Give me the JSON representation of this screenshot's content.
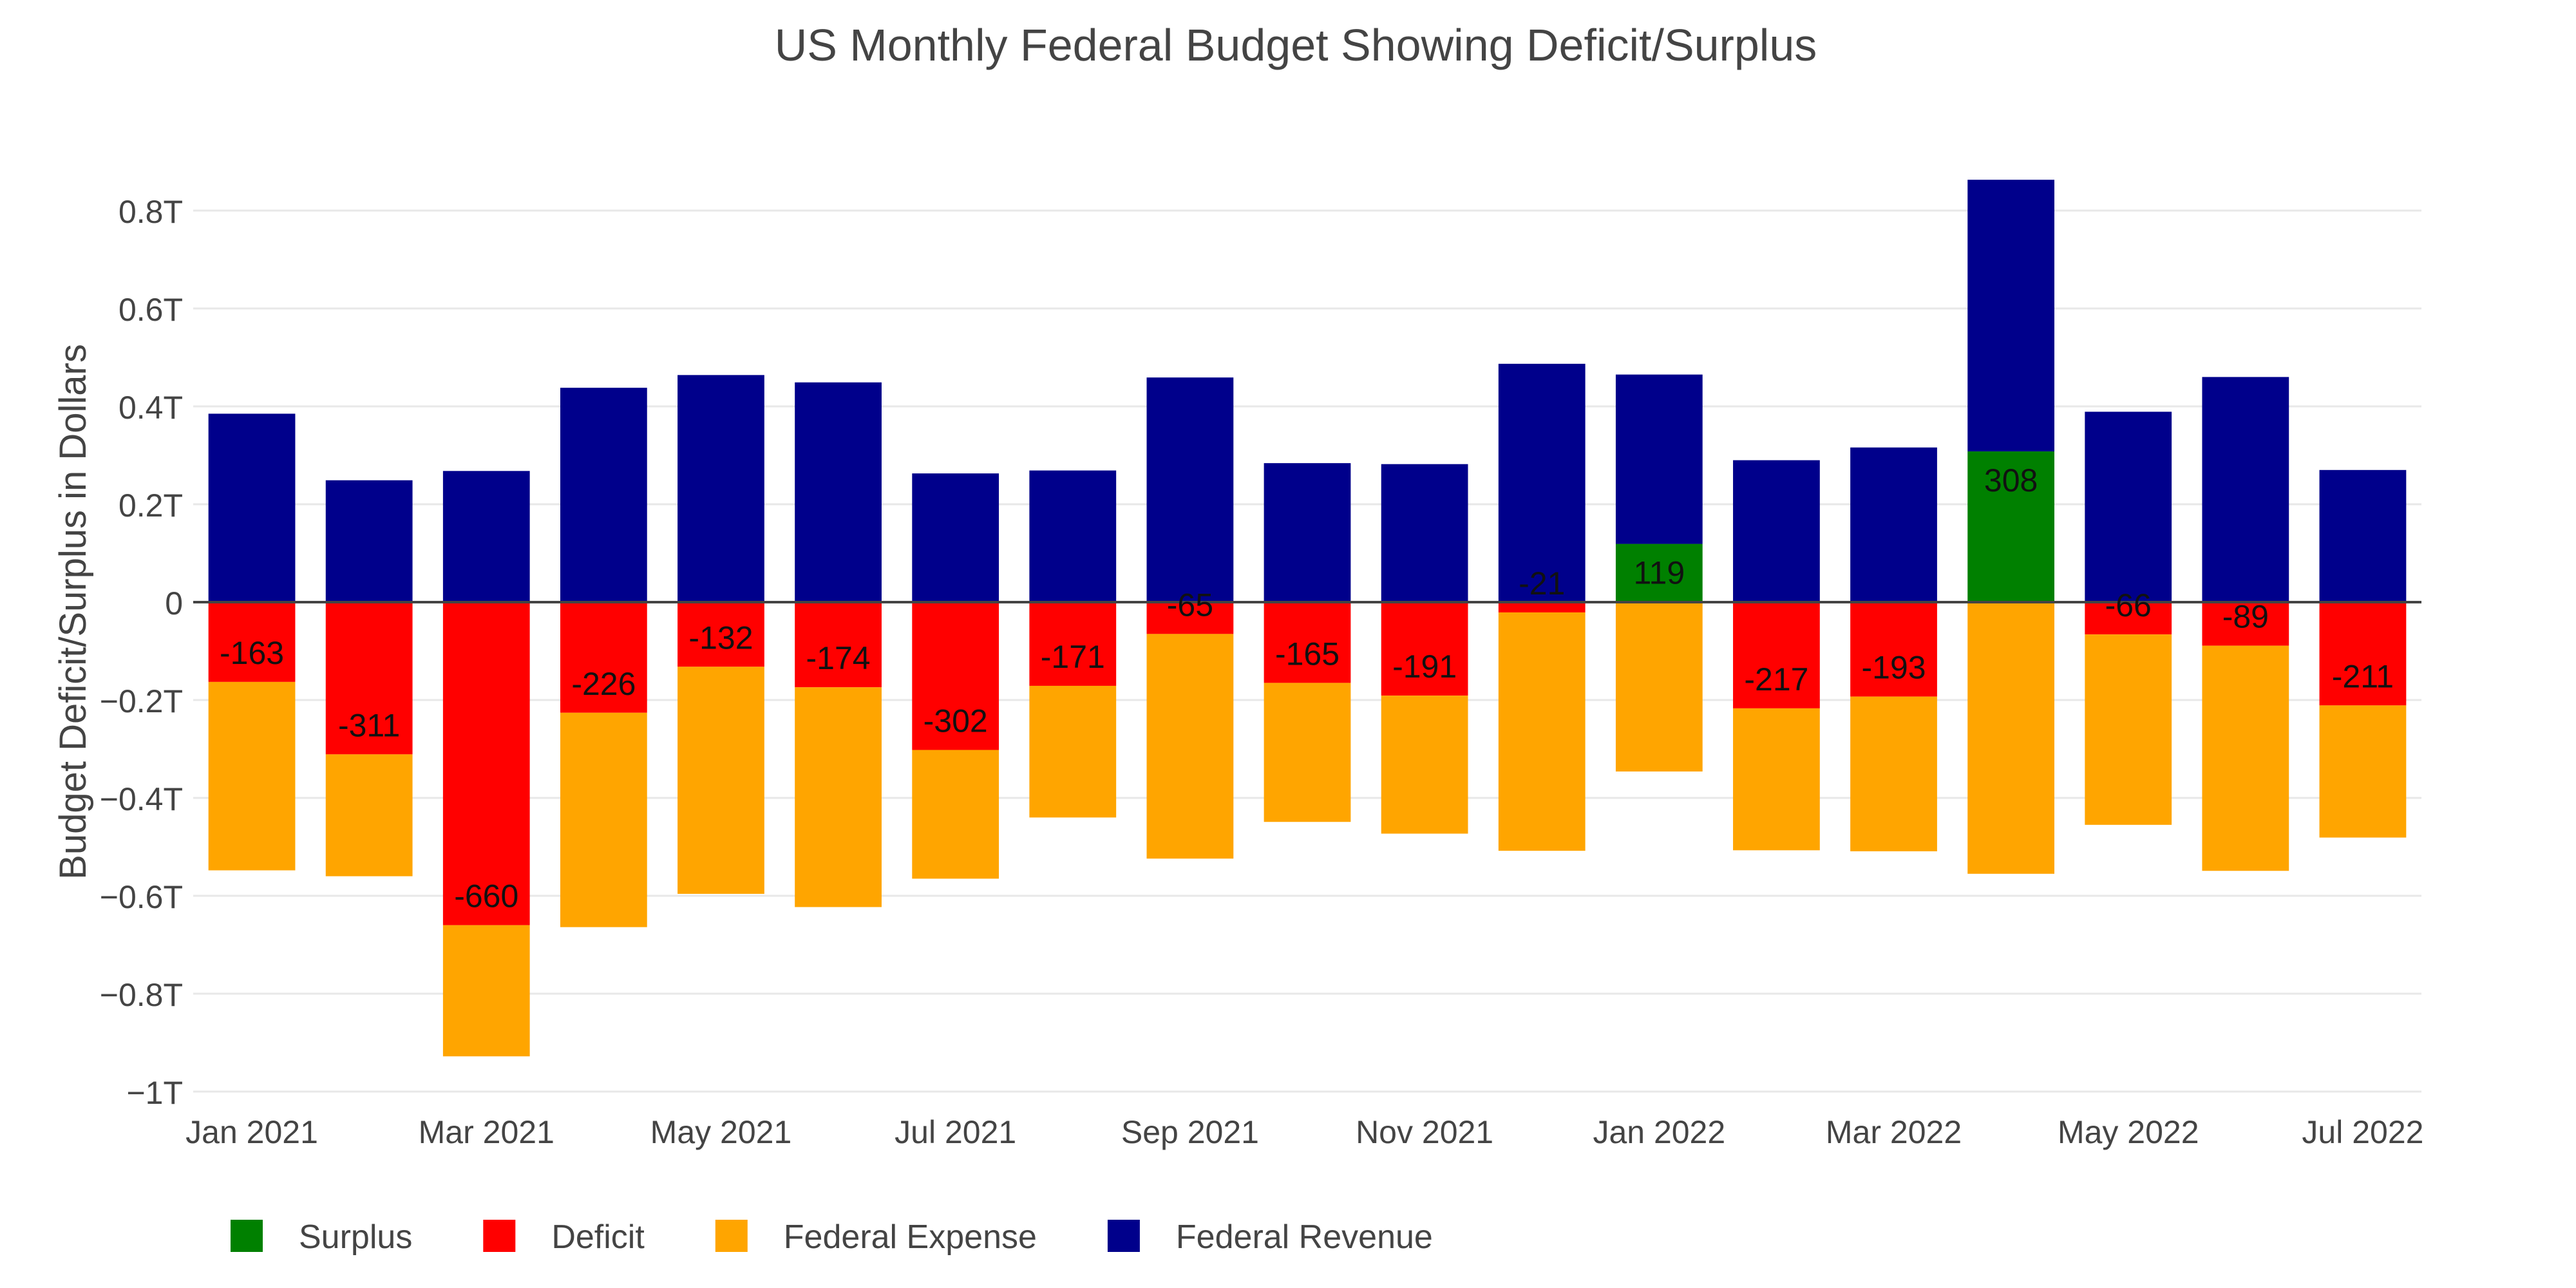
{
  "chart_data": {
    "type": "bar",
    "barmode": "relative",
    "title": "US Monthly Federal Budget Showing Deficit/Surplus",
    "xlabel": "",
    "ylabel": "Budget Deficit/Surplus in Dollars",
    "ylim": [
      -1,
      0.9
    ],
    "y_unit": "trillions of dollars",
    "y_ticks": [
      {
        "value": 0.8,
        "label": "0.8T"
      },
      {
        "value": 0.6,
        "label": "0.6T"
      },
      {
        "value": 0.4,
        "label": "0.4T"
      },
      {
        "value": 0.2,
        "label": "0.2T"
      },
      {
        "value": 0,
        "label": "0"
      },
      {
        "value": -0.2,
        "label": "−0.2T"
      },
      {
        "value": -0.4,
        "label": "−0.4T"
      },
      {
        "value": -0.6,
        "label": "−0.6T"
      },
      {
        "value": -0.8,
        "label": "−0.8T"
      },
      {
        "value": -1,
        "label": "−1T"
      }
    ],
    "x_ticks": [
      {
        "index": 0,
        "label": "Jan 2021"
      },
      {
        "index": 2,
        "label": "Mar 2021"
      },
      {
        "index": 4,
        "label": "May 2021"
      },
      {
        "index": 6,
        "label": "Jul 2021"
      },
      {
        "index": 8,
        "label": "Sep 2021"
      },
      {
        "index": 10,
        "label": "Nov 2021"
      },
      {
        "index": 12,
        "label": "Jan 2022"
      },
      {
        "index": 14,
        "label": "Mar 2022"
      },
      {
        "index": 16,
        "label": "May 2022"
      },
      {
        "index": 18,
        "label": "Jul 2022"
      }
    ],
    "categories": [
      "Jan 2021",
      "Feb 2021",
      "Mar 2021",
      "Apr 2021",
      "May 2021",
      "Jun 2021",
      "Jul 2021",
      "Aug 2021",
      "Sep 2021",
      "Oct 2021",
      "Nov 2021",
      "Dec 2021",
      "Jan 2022",
      "Feb 2022",
      "Mar 2022",
      "Apr 2022",
      "May 2022",
      "Jun 2022",
      "Jul 2022"
    ],
    "series": [
      {
        "name": "Surplus",
        "color": "#008000",
        "values": [
          null,
          null,
          null,
          null,
          null,
          null,
          null,
          null,
          null,
          null,
          null,
          null,
          0.119,
          null,
          null,
          0.308,
          null,
          null,
          null
        ],
        "labels": [
          "",
          "",
          "",
          "",
          "",
          "",
          "",
          "",
          "",
          "",
          "",
          "",
          "119",
          "",
          "",
          "308",
          "",
          "",
          ""
        ]
      },
      {
        "name": "Deficit",
        "color": "#ff0000",
        "values": [
          -0.163,
          -0.311,
          -0.66,
          -0.226,
          -0.132,
          -0.174,
          -0.302,
          -0.171,
          -0.065,
          -0.165,
          -0.191,
          -0.021,
          null,
          -0.217,
          -0.193,
          null,
          -0.066,
          -0.089,
          -0.211
        ],
        "labels": [
          "-163",
          "-311",
          "-660",
          "-226",
          "-132",
          "-174",
          "-302",
          "-171",
          "-65",
          "-165",
          "-191",
          "-21",
          "",
          "-217",
          "-193",
          "",
          "-66",
          "-89",
          "-211"
        ]
      },
      {
        "name": "Federal Expense",
        "color": "#ffa500",
        "values": [
          -0.385,
          -0.249,
          -0.268,
          -0.438,
          -0.464,
          -0.449,
          -0.263,
          -0.269,
          -0.459,
          -0.284,
          -0.282,
          -0.487,
          -0.346,
          -0.29,
          -0.316,
          -0.555,
          -0.389,
          -0.46,
          -0.27
        ]
      },
      {
        "name": "Federal Revenue",
        "color": "#00008b",
        "values": [
          0.385,
          0.249,
          0.268,
          0.438,
          0.464,
          0.449,
          0.263,
          0.269,
          0.459,
          0.284,
          0.282,
          0.487,
          0.346,
          0.29,
          0.316,
          0.555,
          0.389,
          0.46,
          0.27
        ]
      }
    ],
    "legend": {
      "placement": "bottom-left",
      "items": [
        {
          "name": "Surplus",
          "color": "#008000"
        },
        {
          "name": "Deficit",
          "color": "#ff0000"
        },
        {
          "name": "Federal Expense",
          "color": "#ffa500"
        },
        {
          "name": "Federal Revenue",
          "color": "#00008b"
        }
      ]
    },
    "grid": true,
    "gridColor": "#e8e8e8",
    "zeroLineColor": "#444444"
  }
}
